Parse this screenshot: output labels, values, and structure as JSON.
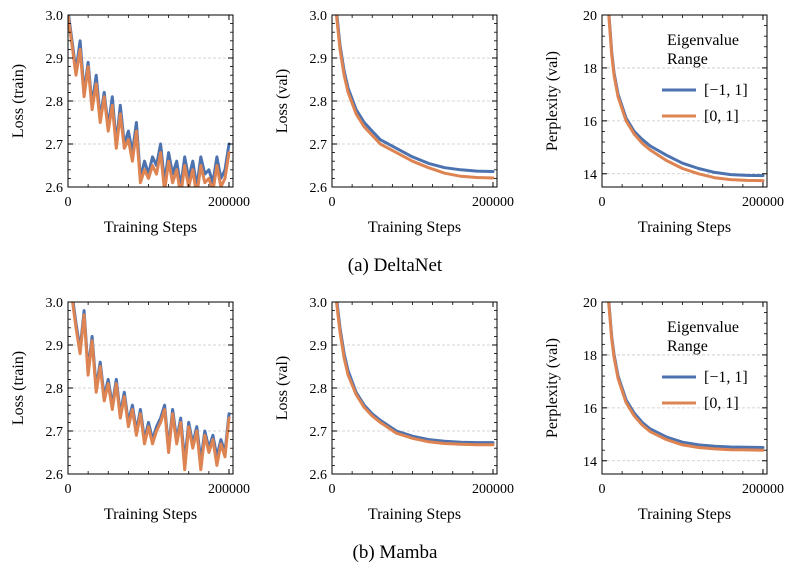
{
  "colors": {
    "series_a": "#4c72b0",
    "series_b": "#dd8452",
    "grid": "#c8c8c8"
  },
  "captions": [
    "(a) DeltaNet",
    "(b) Mamba"
  ],
  "chart_data": [
    {
      "type": "line",
      "group": "DeltaNet",
      "xlabel": "Training Steps",
      "ylabel": "Loss (train)",
      "xlim": [
        0,
        205000
      ],
      "ylim": [
        2.6,
        3.0
      ],
      "xticks": [
        0,
        200000
      ],
      "xtick_labels": [
        "0",
        "200000"
      ],
      "yticks": [
        2.6,
        2.7,
        2.8,
        2.9,
        3.0
      ],
      "ytick_labels": [
        "2.6",
        "2.7",
        "2.8",
        "2.9",
        "3.0"
      ],
      "grid": "y",
      "legend": null,
      "series": [
        {
          "x": [
            0,
            5000,
            10000,
            15000,
            20000,
            25000,
            30000,
            35000,
            40000,
            45000,
            50000,
            55000,
            60000,
            65000,
            70000,
            75000,
            80000,
            85000,
            90000,
            95000,
            100000,
            105000,
            110000,
            115000,
            120000,
            125000,
            130000,
            135000,
            140000,
            145000,
            150000,
            155000,
            160000,
            165000,
            170000,
            175000,
            180000,
            185000,
            190000,
            195000,
            200000
          ],
          "y": [
            3.01,
            2.94,
            2.87,
            2.94,
            2.82,
            2.89,
            2.79,
            2.86,
            2.76,
            2.82,
            2.74,
            2.81,
            2.7,
            2.79,
            2.7,
            2.73,
            2.68,
            2.75,
            2.62,
            2.66,
            2.63,
            2.67,
            2.65,
            2.7,
            2.61,
            2.68,
            2.63,
            2.66,
            2.6,
            2.67,
            2.62,
            2.66,
            2.6,
            2.67,
            2.63,
            2.64,
            2.61,
            2.67,
            2.62,
            2.64,
            2.7
          ]
        },
        {
          "x": [
            0,
            5000,
            10000,
            15000,
            20000,
            25000,
            30000,
            35000,
            40000,
            45000,
            50000,
            55000,
            60000,
            65000,
            70000,
            75000,
            80000,
            85000,
            90000,
            95000,
            100000,
            105000,
            110000,
            115000,
            120000,
            125000,
            130000,
            135000,
            140000,
            145000,
            150000,
            155000,
            160000,
            165000,
            170000,
            175000,
            180000,
            185000,
            190000,
            195000,
            200000
          ],
          "y": [
            3.0,
            2.93,
            2.86,
            2.92,
            2.81,
            2.88,
            2.78,
            2.84,
            2.75,
            2.81,
            2.73,
            2.79,
            2.69,
            2.77,
            2.69,
            2.71,
            2.66,
            2.73,
            2.61,
            2.64,
            2.62,
            2.65,
            2.63,
            2.68,
            2.59,
            2.66,
            2.61,
            2.64,
            2.58,
            2.65,
            2.6,
            2.64,
            2.58,
            2.65,
            2.61,
            2.62,
            2.59,
            2.65,
            2.6,
            2.62,
            2.68
          ]
        }
      ]
    },
    {
      "type": "line",
      "group": "DeltaNet",
      "xlabel": "Training Steps",
      "ylabel": "Loss (val)",
      "xlim": [
        0,
        205000
      ],
      "ylim": [
        2.6,
        3.0
      ],
      "xticks": [
        0,
        200000
      ],
      "xtick_labels": [
        "0",
        "200000"
      ],
      "yticks": [
        2.6,
        2.7,
        2.8,
        2.9,
        3.0
      ],
      "ytick_labels": [
        "2.6",
        "2.7",
        "2.8",
        "2.9",
        "3.0"
      ],
      "grid": "y",
      "legend": null,
      "series": [
        {
          "x": [
            5000,
            10000,
            15000,
            20000,
            30000,
            40000,
            50000,
            60000,
            80000,
            100000,
            120000,
            140000,
            160000,
            180000,
            200000
          ],
          "y": [
            3.02,
            2.93,
            2.87,
            2.83,
            2.78,
            2.75,
            2.73,
            2.71,
            2.69,
            2.67,
            2.655,
            2.645,
            2.64,
            2.637,
            2.636
          ]
        },
        {
          "x": [
            5000,
            10000,
            15000,
            20000,
            30000,
            40000,
            50000,
            60000,
            80000,
            100000,
            120000,
            140000,
            160000,
            180000,
            200000
          ],
          "y": [
            3.01,
            2.92,
            2.86,
            2.82,
            2.77,
            2.74,
            2.72,
            2.7,
            2.68,
            2.66,
            2.645,
            2.632,
            2.625,
            2.622,
            2.621
          ]
        }
      ]
    },
    {
      "type": "line",
      "group": "DeltaNet",
      "xlabel": "Training Steps",
      "ylabel": "Perplexity (val)",
      "xlim": [
        0,
        205000
      ],
      "ylim": [
        13.5,
        20
      ],
      "xticks": [
        0,
        200000
      ],
      "xtick_labels": [
        "0",
        "200000"
      ],
      "yticks": [
        14,
        16,
        18,
        20
      ],
      "ytick_labels": [
        "14",
        "16",
        "18",
        "20"
      ],
      "grid": "y",
      "legend": {
        "title": "Eigenvalue\nRange",
        "position": "top-right",
        "entries": [
          "[−1, 1]",
          "[0, 1]"
        ]
      },
      "series": [
        {
          "name": "[−1, 1]",
          "x": [
            8000,
            12000,
            15000,
            20000,
            30000,
            40000,
            50000,
            60000,
            80000,
            100000,
            120000,
            140000,
            160000,
            180000,
            200000
          ],
          "y": [
            20.3,
            18.6,
            17.8,
            17.0,
            16.1,
            15.6,
            15.3,
            15.05,
            14.7,
            14.4,
            14.2,
            14.05,
            13.97,
            13.94,
            13.93
          ]
        },
        {
          "name": "[0, 1]",
          "x": [
            8000,
            12000,
            15000,
            20000,
            30000,
            40000,
            50000,
            60000,
            80000,
            100000,
            120000,
            140000,
            160000,
            180000,
            200000
          ],
          "y": [
            20.2,
            18.5,
            17.7,
            16.9,
            16.0,
            15.5,
            15.15,
            14.9,
            14.5,
            14.2,
            14.0,
            13.85,
            13.78,
            13.75,
            13.74
          ]
        }
      ]
    },
    {
      "type": "line",
      "group": "Mamba",
      "xlabel": "Training Steps",
      "ylabel": "Loss (train)",
      "xlim": [
        0,
        205000
      ],
      "ylim": [
        2.6,
        3.0
      ],
      "xticks": [
        0,
        200000
      ],
      "xtick_labels": [
        "0",
        "200000"
      ],
      "yticks": [
        2.6,
        2.7,
        2.8,
        2.9,
        3.0
      ],
      "ytick_labels": [
        "2.6",
        "2.7",
        "2.8",
        "2.9",
        "3.0"
      ],
      "grid": "y",
      "legend": null,
      "series": [
        {
          "x": [
            5000,
            10000,
            15000,
            20000,
            25000,
            30000,
            35000,
            40000,
            45000,
            50000,
            55000,
            60000,
            65000,
            70000,
            75000,
            80000,
            85000,
            90000,
            95000,
            100000,
            105000,
            110000,
            115000,
            120000,
            125000,
            130000,
            135000,
            140000,
            145000,
            150000,
            155000,
            160000,
            165000,
            170000,
            175000,
            180000,
            185000,
            190000,
            195000,
            200000
          ],
          "y": [
            3.02,
            2.95,
            2.89,
            2.98,
            2.84,
            2.92,
            2.8,
            2.86,
            2.78,
            2.82,
            2.76,
            2.82,
            2.74,
            2.79,
            2.72,
            2.76,
            2.7,
            2.75,
            2.68,
            2.72,
            2.68,
            2.71,
            2.73,
            2.76,
            2.66,
            2.75,
            2.68,
            2.73,
            2.63,
            2.72,
            2.67,
            2.71,
            2.63,
            2.7,
            2.66,
            2.69,
            2.64,
            2.68,
            2.65,
            2.74
          ]
        },
        {
          "x": [
            5000,
            10000,
            15000,
            20000,
            25000,
            30000,
            35000,
            40000,
            45000,
            50000,
            55000,
            60000,
            65000,
            70000,
            75000,
            80000,
            85000,
            90000,
            95000,
            100000,
            105000,
            110000,
            115000,
            120000,
            125000,
            130000,
            135000,
            140000,
            145000,
            150000,
            155000,
            160000,
            165000,
            170000,
            175000,
            180000,
            185000,
            190000,
            195000,
            200000
          ],
          "y": [
            3.01,
            2.94,
            2.88,
            2.97,
            2.83,
            2.91,
            2.79,
            2.85,
            2.77,
            2.81,
            2.75,
            2.81,
            2.73,
            2.78,
            2.71,
            2.75,
            2.69,
            2.74,
            2.67,
            2.71,
            2.67,
            2.7,
            2.72,
            2.75,
            2.65,
            2.74,
            2.67,
            2.72,
            2.61,
            2.71,
            2.66,
            2.7,
            2.61,
            2.69,
            2.65,
            2.68,
            2.62,
            2.67,
            2.64,
            2.73
          ]
        }
      ]
    },
    {
      "type": "line",
      "group": "Mamba",
      "xlabel": "Training Steps",
      "ylabel": "Loss (val)",
      "xlim": [
        0,
        205000
      ],
      "ylim": [
        2.6,
        3.0
      ],
      "xticks": [
        0,
        200000
      ],
      "xtick_labels": [
        "0",
        "200000"
      ],
      "yticks": [
        2.6,
        2.7,
        2.8,
        2.9,
        3.0
      ],
      "ytick_labels": [
        "2.6",
        "2.7",
        "2.8",
        "2.9",
        "3.0"
      ],
      "grid": "y",
      "legend": null,
      "series": [
        {
          "x": [
            5000,
            10000,
            15000,
            20000,
            30000,
            40000,
            50000,
            60000,
            80000,
            100000,
            120000,
            140000,
            160000,
            180000,
            200000
          ],
          "y": [
            3.02,
            2.94,
            2.88,
            2.84,
            2.79,
            2.76,
            2.74,
            2.725,
            2.7,
            2.688,
            2.68,
            2.676,
            2.674,
            2.673,
            2.673
          ]
        },
        {
          "x": [
            5000,
            10000,
            15000,
            20000,
            30000,
            40000,
            50000,
            60000,
            80000,
            100000,
            120000,
            140000,
            160000,
            180000,
            200000
          ],
          "y": [
            3.01,
            2.93,
            2.87,
            2.83,
            2.785,
            2.755,
            2.735,
            2.72,
            2.695,
            2.683,
            2.675,
            2.671,
            2.669,
            2.668,
            2.668
          ]
        }
      ]
    },
    {
      "type": "line",
      "group": "Mamba",
      "xlabel": "Training Steps",
      "ylabel": "Perplexity (val)",
      "xlim": [
        0,
        205000
      ],
      "ylim": [
        13.5,
        20
      ],
      "xticks": [
        0,
        200000
      ],
      "xtick_labels": [
        "0",
        "200000"
      ],
      "yticks": [
        14,
        16,
        18,
        20
      ],
      "ytick_labels": [
        "14",
        "16",
        "18",
        "20"
      ],
      "grid": "y",
      "legend": {
        "title": "Eigenvalue\nRange",
        "position": "top-right",
        "entries": [
          "[−1, 1]",
          "[0, 1]"
        ]
      },
      "series": [
        {
          "name": "[−1, 1]",
          "x": [
            8000,
            12000,
            15000,
            20000,
            30000,
            40000,
            50000,
            60000,
            80000,
            100000,
            120000,
            140000,
            160000,
            180000,
            200000
          ],
          "y": [
            20.2,
            18.7,
            18.0,
            17.2,
            16.3,
            15.8,
            15.45,
            15.2,
            14.9,
            14.7,
            14.6,
            14.55,
            14.52,
            14.51,
            14.5
          ]
        },
        {
          "name": "[0, 1]",
          "x": [
            8000,
            12000,
            15000,
            20000,
            30000,
            40000,
            50000,
            60000,
            80000,
            100000,
            120000,
            140000,
            160000,
            180000,
            200000
          ],
          "y": [
            20.1,
            18.6,
            17.9,
            17.1,
            16.2,
            15.7,
            15.35,
            15.1,
            14.8,
            14.6,
            14.5,
            14.45,
            14.42,
            14.41,
            14.4
          ]
        }
      ]
    }
  ]
}
